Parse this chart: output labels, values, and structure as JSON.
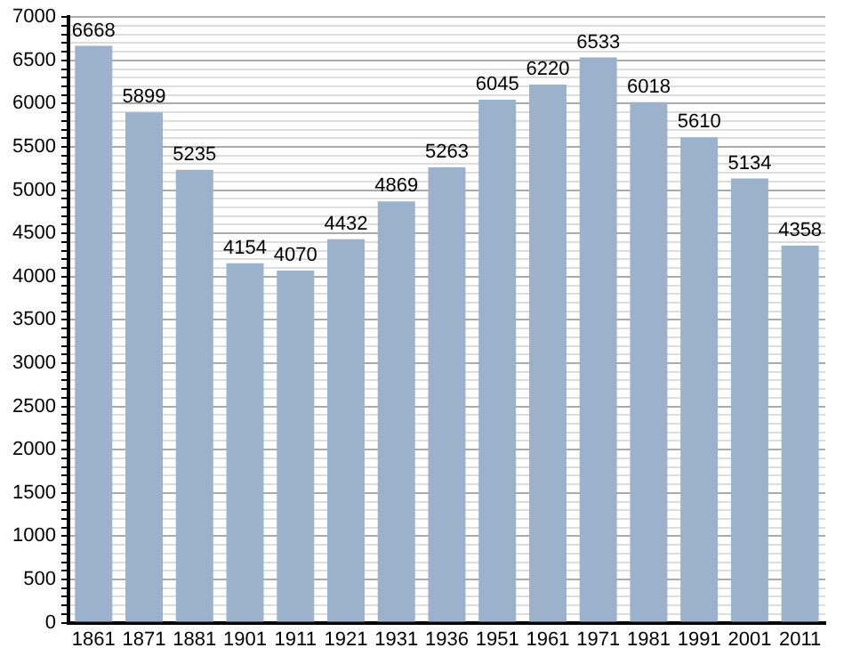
{
  "chart_data": {
    "type": "bar",
    "categories": [
      "1861",
      "1871",
      "1881",
      "1901",
      "1911",
      "1921",
      "1931",
      "1936",
      "1951",
      "1961",
      "1971",
      "1981",
      "1991",
      "2001",
      "2011"
    ],
    "values": [
      6668,
      5899,
      5235,
      4154,
      4070,
      4432,
      4869,
      5263,
      6045,
      6220,
      6533,
      6018,
      5610,
      5134,
      4358
    ],
    "color": "#9bb1cc",
    "data_labels": true,
    "grid": true,
    "ylim": [
      0,
      7000
    ],
    "yticks": [
      0,
      {
        "value": 100,
        "label": null
      },
      {
        "value": 200,
        "label": null
      },
      {
        "value": 300,
        "label": null
      },
      {
        "value": 400,
        "label": null
      },
      500,
      {
        "value": 600,
        "label": null
      },
      {
        "value": 700,
        "label": null
      },
      {
        "value": 800,
        "label": null
      },
      {
        "value": 900,
        "label": null
      },
      1000,
      {
        "value": 1100,
        "label": null
      },
      {
        "value": 1200,
        "label": null
      },
      {
        "value": 1300,
        "label": null
      },
      {
        "value": 1400,
        "label": null
      },
      1500,
      {
        "value": 1600,
        "label": null
      },
      {
        "value": 1700,
        "label": null
      },
      {
        "value": 1800,
        "label": null
      },
      {
        "value": 1900,
        "label": null
      },
      2000,
      {
        "value": 2100,
        "label": null
      },
      {
        "value": 2200,
        "label": null
      },
      {
        "value": 2300,
        "label": null
      },
      {
        "value": 2400,
        "label": null
      },
      2500,
      {
        "value": 2600,
        "label": null
      },
      {
        "value": 2700,
        "label": null
      },
      {
        "value": 2800,
        "label": null
      },
      {
        "value": 2900,
        "label": null
      },
      3000,
      {
        "value": 3100,
        "label": null
      },
      {
        "value": 3200,
        "label": null
      },
      {
        "value": 3300,
        "label": null
      },
      {
        "value": 3400,
        "label": null
      },
      3500,
      {
        "value": 3600,
        "label": null
      },
      {
        "value": 3700,
        "label": null
      },
      {
        "value": 3800,
        "label": null
      },
      {
        "value": 3900,
        "label": null
      },
      4000,
      {
        "value": 4100,
        "label": null
      },
      {
        "value": 4200,
        "label": null
      },
      {
        "value": 4300,
        "label": null
      },
      {
        "value": 4400,
        "label": null
      },
      4500,
      {
        "value": 4600,
        "label": null
      },
      {
        "value": 4700,
        "label": null
      },
      {
        "value": 4800,
        "label": null
      },
      {
        "value": 4900,
        "label": null
      },
      5000,
      {
        "value": 5100,
        "label": null
      },
      {
        "value": 5200,
        "label": null
      },
      {
        "value": 5300,
        "label": null
      },
      {
        "value": 5400,
        "label": null
      },
      5500,
      {
        "value": 5600,
        "label": null
      },
      {
        "value": 5700,
        "label": null
      },
      {
        "value": 5800,
        "label": null
      },
      {
        "value": 5900,
        "label": null
      },
      6000,
      {
        "value": 6100,
        "label": null
      },
      {
        "value": 6200,
        "label": null
      },
      {
        "value": 6300,
        "label": null
      },
      {
        "value": 6400,
        "label": null
      },
      6500,
      {
        "value": 6600,
        "label": null
      },
      {
        "value": 6700,
        "label": null
      },
      {
        "value": 6800,
        "label": null
      },
      {
        "value": 6900,
        "label": null
      },
      7000
    ]
  }
}
